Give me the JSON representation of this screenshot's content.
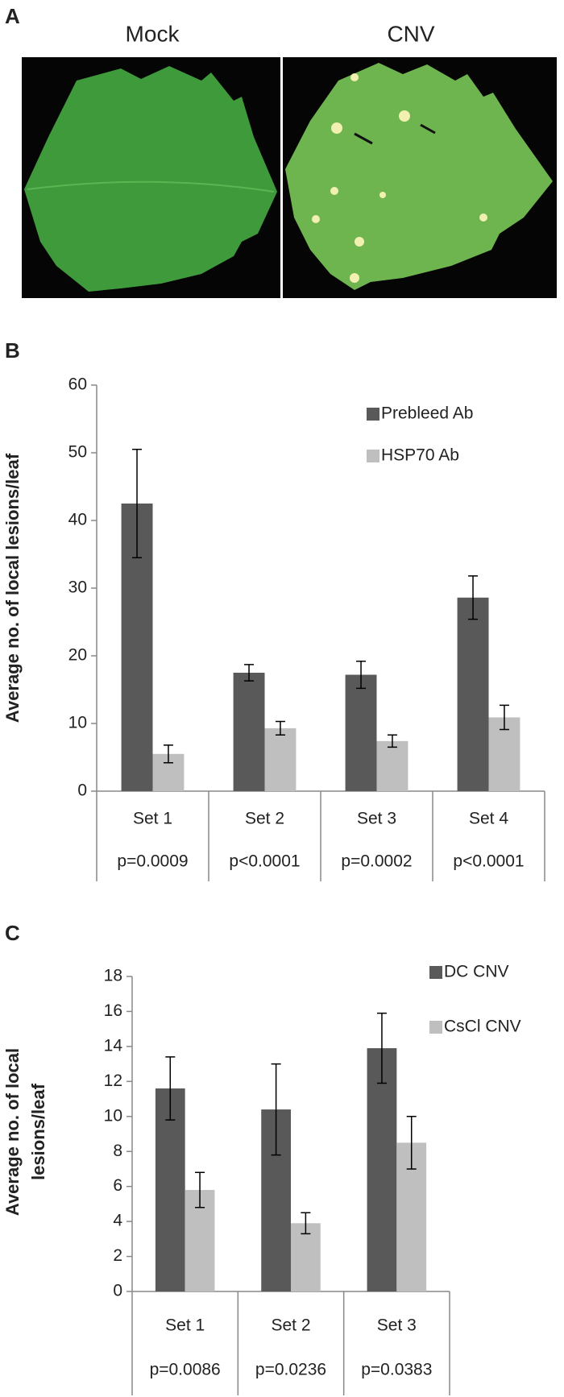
{
  "panel_labels": [
    "A",
    "B",
    "C"
  ],
  "photo_labels": [
    "Mock",
    "CNV"
  ],
  "chart_data": [
    {
      "type": "bar",
      "ylabel": [
        "Average no. of local lesions/leaf"
      ],
      "categories": [
        "Set 1",
        "Set 2",
        "Set 3",
        "Set 4"
      ],
      "p_values": [
        "p=0.0009",
        "p<0.0001",
        "p=0.0002",
        "p<0.0001"
      ],
      "series": [
        {
          "name": "Prebleed Ab",
          "color": "#595959",
          "values": [
            42.5,
            17.5,
            17.2,
            28.6
          ],
          "errors": [
            8,
            1.2,
            2,
            3.2
          ]
        },
        {
          "name": "HSP70 Ab",
          "color": "#bfbfbf",
          "values": [
            5.5,
            9.3,
            7.4,
            10.9
          ],
          "errors": [
            1.3,
            1,
            0.9,
            1.8
          ]
        }
      ],
      "ylim": [
        0,
        60
      ],
      "yticks": [
        0,
        10,
        20,
        30,
        40,
        50,
        60
      ],
      "grid": false,
      "legend": "upper right"
    },
    {
      "type": "bar",
      "ylabel": [
        "Average no. of local",
        "lesions/leaf"
      ],
      "categories": [
        "Set 1",
        "Set 2",
        "Set 3"
      ],
      "p_values": [
        "p=0.0086",
        "p=0.0236",
        "p=0.0383"
      ],
      "series": [
        {
          "name": "DC CNV",
          "color": "#595959",
          "values": [
            11.6,
            10.4,
            13.9
          ],
          "errors": [
            1.8,
            2.6,
            2
          ]
        },
        {
          "name": "CsCl CNV",
          "color": "#bfbfbf",
          "values": [
            5.8,
            3.9,
            8.5
          ],
          "errors": [
            1,
            0.6,
            1.5
          ]
        }
      ],
      "ylim": [
        0,
        18
      ],
      "yticks": [
        0,
        2,
        4,
        6,
        8,
        10,
        12,
        14,
        16,
        18
      ],
      "grid": false,
      "legend": "upper right"
    }
  ]
}
